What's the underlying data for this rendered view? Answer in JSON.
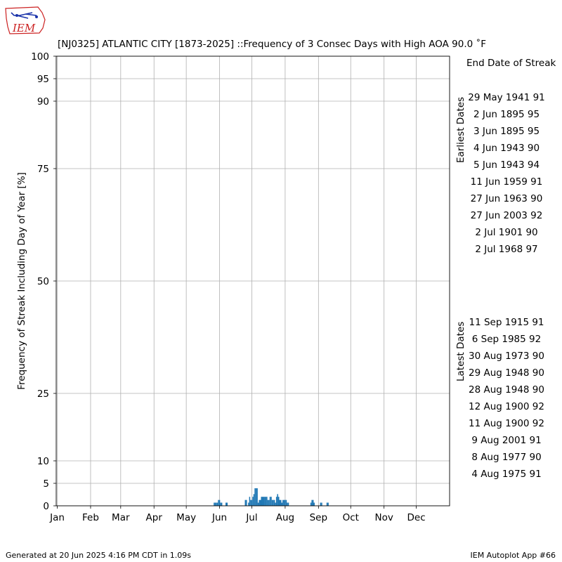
{
  "logo": {
    "text": "IEM"
  },
  "colors": {
    "bar": "#1f77b4",
    "grid": "#b0b0b0",
    "axis": "#000000",
    "logo_red": "#cc2222",
    "logo_blue": "#1a33aa"
  },
  "chart_data": {
    "type": "bar",
    "title": "[NJ0325] ATLANTIC CITY [1873-2025] ::Frequency of 3 Consec Days with High AOA 90.0 ˚F",
    "ylabel": "Frequency of Streak Including Day of Year [%]",
    "xlabel": "",
    "ylim": [
      0,
      100
    ],
    "xlim": [
      0,
      366
    ],
    "yticks": [
      0,
      5,
      10,
      25,
      50,
      75,
      90,
      95,
      100
    ],
    "xticks": [
      {
        "label": "Jan",
        "day": 1
      },
      {
        "label": "Feb",
        "day": 32
      },
      {
        "label": "Mar",
        "day": 60
      },
      {
        "label": "Apr",
        "day": 91
      },
      {
        "label": "May",
        "day": 121
      },
      {
        "label": "Jun",
        "day": 152
      },
      {
        "label": "Jul",
        "day": 182
      },
      {
        "label": "Aug",
        "day": 213
      },
      {
        "label": "Sep",
        "day": 244
      },
      {
        "label": "Oct",
        "day": 274
      },
      {
        "label": "Nov",
        "day": 305
      },
      {
        "label": "Dec",
        "day": 335
      }
    ],
    "grid": true,
    "days": [
      147,
      148,
      149,
      150,
      151,
      152,
      153,
      154,
      158,
      159,
      176,
      177,
      179,
      180,
      181,
      182,
      183,
      184,
      185,
      186,
      187,
      188,
      189,
      190,
      191,
      192,
      193,
      194,
      195,
      196,
      197,
      198,
      199,
      200,
      201,
      202,
      203,
      204,
      205,
      206,
      207,
      208,
      209,
      210,
      211,
      212,
      213,
      214,
      215,
      216,
      237,
      238,
      239,
      240,
      246,
      247,
      252,
      253
    ],
    "values": [
      0.7,
      0.7,
      0.7,
      0.7,
      1.3,
      1.3,
      0.7,
      0.7,
      0.7,
      0.7,
      1.3,
      1.3,
      0.7,
      2.0,
      1.3,
      1.3,
      2.0,
      2.6,
      3.9,
      3.9,
      3.9,
      0.7,
      1.3,
      1.3,
      2.0,
      2.0,
      2.0,
      2.0,
      2.0,
      2.0,
      1.3,
      1.3,
      2.0,
      2.0,
      1.3,
      1.3,
      1.3,
      0.7,
      2.0,
      2.6,
      2.0,
      1.3,
      1.3,
      0.7,
      1.3,
      1.3,
      1.3,
      1.3,
      0.7,
      0.7,
      0.7,
      1.3,
      1.3,
      0.7,
      0.7,
      0.7,
      0.7,
      0.7
    ]
  },
  "side_panel": {
    "header": "End Date of Streak",
    "earliest_label": "Earliest Dates",
    "latest_label": "Latest Dates",
    "earliest": [
      "29 May 1941 91",
      "2 Jun 1895 95",
      "3 Jun 1895 95",
      "4 Jun 1943 90",
      "5 Jun 1943 94",
      "11 Jun 1959 91",
      "27 Jun 1963 90",
      "27 Jun 2003 92",
      "2 Jul 1901 90",
      "2 Jul 1968 97"
    ],
    "latest": [
      "11 Sep 1915 91",
      "6 Sep 1985 92",
      "30 Aug 1973 90",
      "29 Aug 1948 90",
      "28 Aug 1948 90",
      "12 Aug 1900 92",
      "11 Aug 1900 92",
      "9 Aug 2001 91",
      "8 Aug 1977 90",
      "4 Aug 1975 91"
    ]
  },
  "footer": {
    "left": "Generated at 20 Jun 2025 4:16 PM CDT in 1.09s",
    "right": "IEM Autoplot App #66"
  }
}
